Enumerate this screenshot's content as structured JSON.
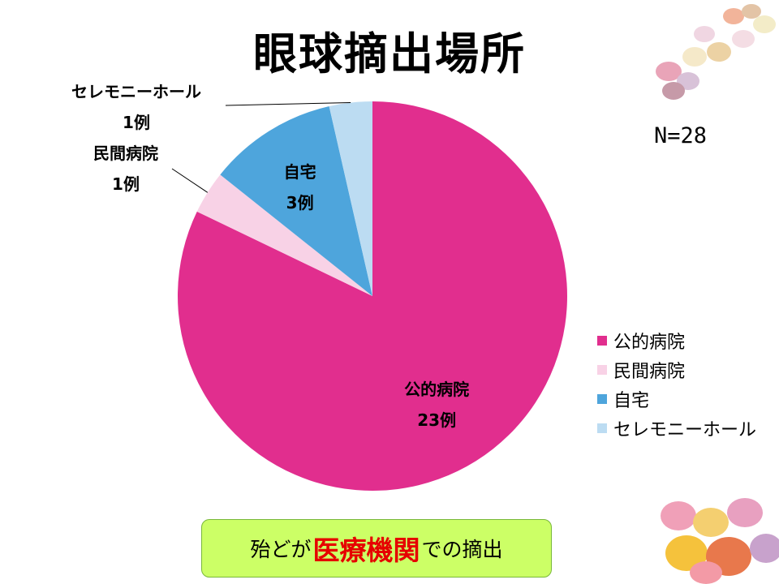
{
  "title": "眼球摘出場所",
  "n_label": "N=28",
  "chart_data": {
    "type": "pie",
    "title": "眼球摘出場所",
    "total_label": "N=28",
    "unit": "例",
    "slices": [
      {
        "name": "公的病院",
        "value": 23,
        "value_label": "23例",
        "color": "#e12e8e"
      },
      {
        "name": "民間病院",
        "value": 1,
        "value_label": "1例",
        "color": "#f8d2e6"
      },
      {
        "name": "自宅",
        "value": 3,
        "value_label": "3例",
        "color": "#4ea5dc"
      },
      {
        "name": "セレモニーホール",
        "value": 1,
        "value_label": "1例",
        "color": "#bcdcf2"
      }
    ],
    "legend_position": "right",
    "start_angle_deg": 0,
    "direction": "clockwise"
  },
  "legend": {
    "items": [
      {
        "label": "公的病院",
        "color": "#e12e8e"
      },
      {
        "label": "民間病院",
        "color": "#f8d2e6"
      },
      {
        "label": "自宅",
        "color": "#4ea5dc"
      },
      {
        "label": "セレモニーホール",
        "color": "#bcdcf2"
      }
    ]
  },
  "callout": {
    "prefix": "殆どが",
    "emphasis": "医療機関",
    "suffix": "での摘出"
  },
  "decorations": {
    "top_right": "candy-eggs-image",
    "bottom_right": "candy-eggs-image"
  }
}
